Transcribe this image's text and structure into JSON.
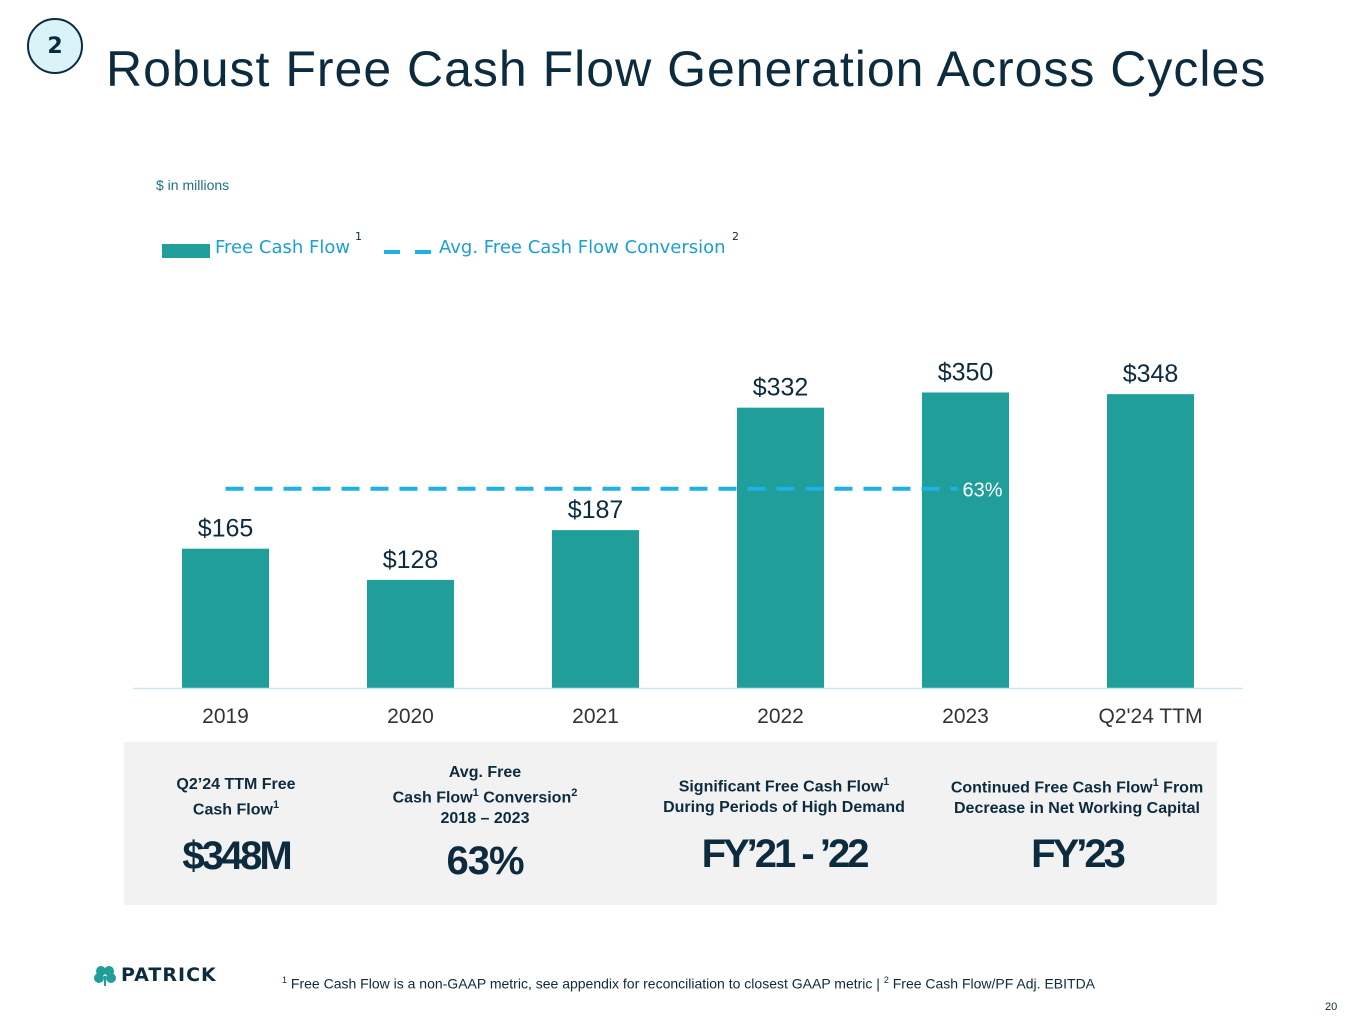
{
  "slide": {
    "section_number": "2",
    "title": "Robust Free Cash Flow Generation Across Cycles",
    "units_note": "$ in millions",
    "page_number": "20"
  },
  "legend": {
    "series_label": "Free Cash Flow",
    "series_sup": "1",
    "line_label": "Avg. Free Cash Flow Conversion",
    "line_sup": "2"
  },
  "colors": {
    "bar": "#1f9e9a",
    "avg_line": "#1fb0e6",
    "text_dark": "#0d2b3e",
    "panel_bg": "#f2f2f2"
  },
  "chart_data": {
    "type": "bar",
    "title": "",
    "xlabel": "",
    "ylabel": "",
    "categories": [
      "2019",
      "2020",
      "2021",
      "2022",
      "2023",
      "Q2'24 TTM"
    ],
    "series": [
      {
        "name": "Free Cash Flow",
        "values": [
          165,
          128,
          187,
          332,
          350,
          348
        ]
      }
    ],
    "data_labels": [
      "$165",
      "$128",
      "$187",
      "$332",
      "$350",
      "$348"
    ],
    "reference_line": {
      "name": "Avg. Free Cash Flow Conversion",
      "value": 236,
      "label": "63%",
      "style": "dashed",
      "spans": [
        "2019",
        "2023"
      ]
    },
    "ylim": [
      0,
      400
    ],
    "grid": false
  },
  "kpis": [
    {
      "head_lines": [
        "Q2’24 TTM Free",
        "Cash Flow"
      ],
      "sup_line": 1,
      "sup": "1",
      "value": "$348M"
    },
    {
      "head_lines": [
        "Avg. Free",
        "Cash Flow",
        "2018 – 2023"
      ],
      "value": "63%"
    },
    {
      "head_lines": [
        "Significant Free Cash Flow",
        "During Periods of High Demand"
      ],
      "value": "FY’21 - ’22"
    },
    {
      "head_lines": [
        "Continued Free Cash Flow",
        "Decrease in Net Working Capital"
      ],
      "value": "FY’23"
    }
  ],
  "kpi_parts": {
    "k2_line2_a": "Cash Flow",
    "k2_line2_sup": "1",
    "k2_line2_b": " Conversion",
    "k2_line2_sup2": "2",
    "k3_line1": "Significant Free Cash Flow",
    "k3_sup": "1",
    "k4_line1_a": "Continued Free Cash Flow",
    "k4_sup": "1",
    "k4_line1_b": " From"
  },
  "footer": {
    "logo_text": "PATRICK",
    "footnote_sup1": "1",
    "footnote_text1": " Free Cash Flow is a non-GAAP metric, see appendix for reconciliation to closest GAAP metric | ",
    "footnote_sup2": "2",
    "footnote_text2": " Free Cash Flow/PF Adj. EBITDA"
  }
}
